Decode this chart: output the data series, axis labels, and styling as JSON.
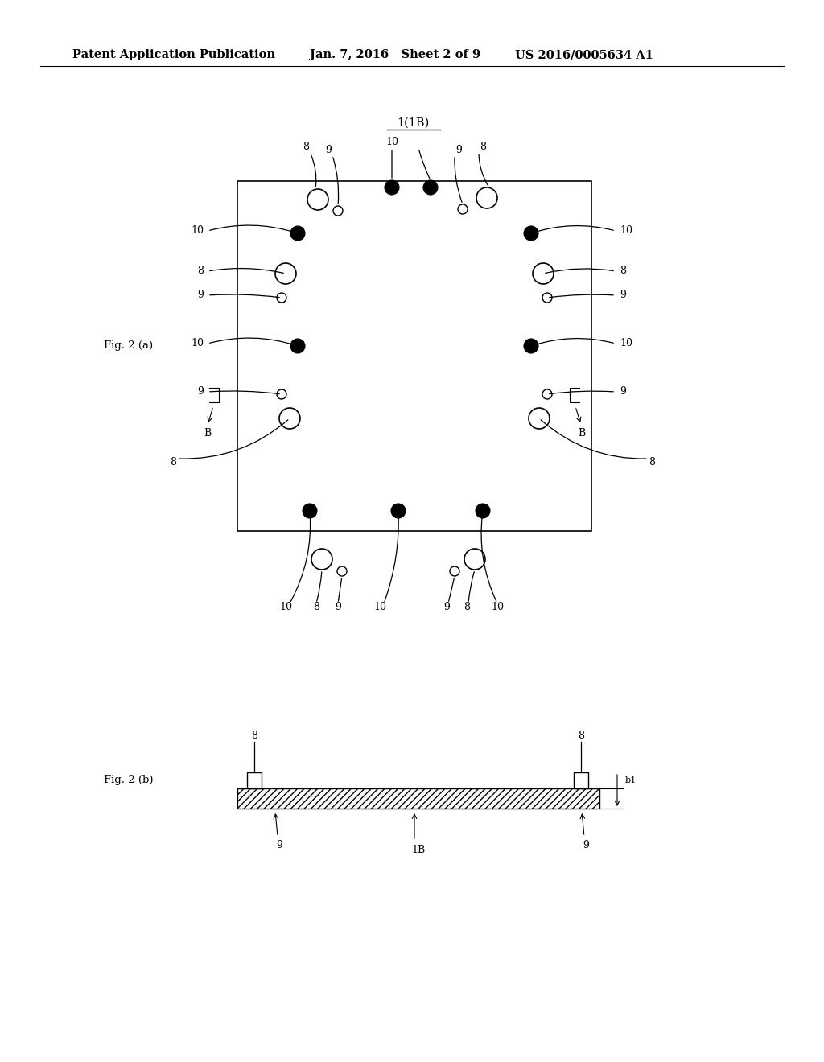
{
  "bg_color": "#ffffff",
  "header_left": "Patent Application Publication",
  "header_mid": "Jan. 7, 2016   Sheet 2 of 9",
  "header_right": "US 2016/0005634 A1",
  "fig_a_label": "Fig. 2 (a)",
  "fig_b_label": "Fig. 2 (b)",
  "title_label": "1(1B)",
  "font_size_header": 10.5,
  "font_size_labels": 9.5,
  "font_size_fig": 9.5,
  "font_size_num": 9
}
